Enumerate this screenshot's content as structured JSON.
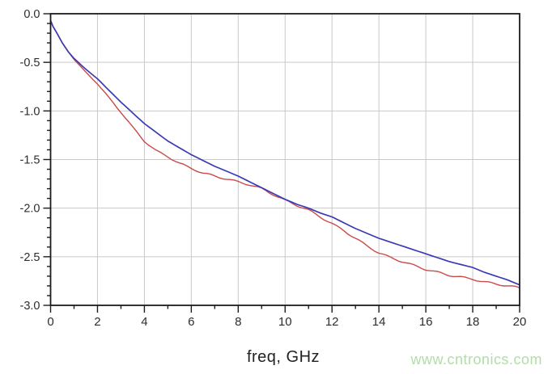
{
  "watermark": {
    "text": "www.cntronics.com",
    "color": "#b4dcaa"
  },
  "colors": {
    "background": "#ffffff",
    "frame": "#1c1c1c",
    "grid": "#c9c9c9",
    "tick": "#1c1c1c",
    "tick_label": "#2d2d2d",
    "blue_trace": "#3a3ab5",
    "red_trace": "#c94a4a"
  },
  "chart_data": {
    "type": "line",
    "title": "",
    "xlabel": "freq, GHz",
    "ylabel": "",
    "xlim": [
      0,
      20
    ],
    "ylim": [
      -3.0,
      0.0
    ],
    "grid": true,
    "legend": "none",
    "x_major_ticks": [
      0,
      2,
      4,
      6,
      8,
      10,
      12,
      14,
      16,
      18,
      20
    ],
    "x_tick_labels": [
      "0",
      "2",
      "4",
      "6",
      "8",
      "10",
      "12",
      "14",
      "16",
      "18",
      "20"
    ],
    "x_minor_ticks": [
      1,
      3,
      5,
      7,
      9,
      11,
      13,
      15,
      17,
      19
    ],
    "y_major_ticks": [
      0,
      -0.5,
      -1.0,
      -1.5,
      -2.0,
      -2.5,
      -3.0
    ],
    "y_tick_labels": [
      "0.0",
      "-0.5",
      "-1.0",
      "-1.5",
      "-2.0",
      "-2.5",
      "-3.0"
    ],
    "y_minor_step": 0.1,
    "x": [
      0,
      0.1,
      0.25,
      0.5,
      0.75,
      1,
      1.5,
      2,
      2.5,
      3,
      3.5,
      4,
      4.5,
      5,
      5.5,
      6,
      6.5,
      7,
      7.5,
      8,
      8.5,
      9,
      9.5,
      10,
      10.5,
      11,
      11.5,
      12,
      12.5,
      13,
      13.5,
      14,
      14.5,
      15,
      15.5,
      16,
      16.5,
      17,
      17.5,
      18,
      18.5,
      19,
      19.5,
      20
    ],
    "series": [
      {
        "name": "blue-trace",
        "color": "#3a3ab5",
        "values": [
          -0.07,
          -0.13,
          -0.19,
          -0.3,
          -0.39,
          -0.46,
          -0.57,
          -0.67,
          -0.79,
          -0.91,
          -1.02,
          -1.13,
          -1.22,
          -1.31,
          -1.38,
          -1.45,
          -1.51,
          -1.57,
          -1.62,
          -1.67,
          -1.73,
          -1.79,
          -1.85,
          -1.91,
          -1.96,
          -2.0,
          -2.05,
          -2.09,
          -2.15,
          -2.21,
          -2.26,
          -2.31,
          -2.35,
          -2.39,
          -2.43,
          -2.47,
          -2.51,
          -2.55,
          -2.58,
          -2.61,
          -2.66,
          -2.7,
          -2.74,
          -2.79
        ]
      },
      {
        "name": "red-trace",
        "color": "#c94a4a",
        "values": [
          -0.07,
          -0.13,
          -0.19,
          -0.3,
          -0.39,
          -0.47,
          -0.6,
          -0.72,
          -0.87,
          -1.01,
          -1.17,
          -1.31,
          -1.41,
          -1.47,
          -1.54,
          -1.59,
          -1.64,
          -1.67,
          -1.7,
          -1.73,
          -1.76,
          -1.8,
          -1.86,
          -1.92,
          -1.97,
          -2.02,
          -2.09,
          -2.16,
          -2.23,
          -2.31,
          -2.39,
          -2.46,
          -2.51,
          -2.55,
          -2.59,
          -2.63,
          -2.66,
          -2.69,
          -2.71,
          -2.73,
          -2.76,
          -2.78,
          -2.8,
          -2.82
        ]
      }
    ]
  }
}
